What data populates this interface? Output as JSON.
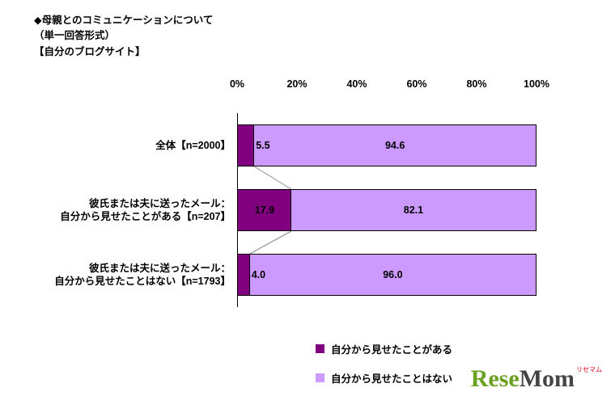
{
  "title": {
    "lines": [
      "◆母親とのコミュニケーションについて",
      "（単一回答形式）",
      "【自分のブログサイト】"
    ]
  },
  "chart_data": {
    "type": "bar",
    "orientation": "horizontal",
    "stacked": true,
    "unit": "%",
    "xlim": [
      0,
      100
    ],
    "axis_ticks": [
      "0%",
      "20%",
      "40%",
      "60%",
      "80%",
      "100%"
    ],
    "grid": false,
    "legend_position": "bottom",
    "categories": [
      [
        "全体【n=2000】"
      ],
      [
        "彼氏または夫に送ったメール：",
        "自分から見せたことがある【n=207】"
      ],
      [
        "彼氏または夫に送ったメール：",
        "自分から見せたことはない【n=1793】"
      ]
    ],
    "series": [
      {
        "name": "自分から見せたことがある",
        "color": "#800080",
        "values": [
          5.5,
          17.9,
          4.0
        ]
      },
      {
        "name": "自分から見せたことはない",
        "color": "#CC99FF",
        "values": [
          94.6,
          82.1,
          96.0
        ]
      }
    ],
    "value_labels": [
      [
        "5.5",
        "94.6"
      ],
      [
        "17.9",
        "82.1"
      ],
      [
        "4.0",
        "96.0"
      ]
    ]
  },
  "legend": {
    "items": [
      {
        "label": "自分から見せたことがある",
        "color": "#800080"
      },
      {
        "label": "自分から見せたことはない",
        "color": "#CC99FF"
      }
    ]
  },
  "logo": {
    "text_green": "Rese",
    "text_dark": "Mom",
    "kana": "リセマム"
  }
}
